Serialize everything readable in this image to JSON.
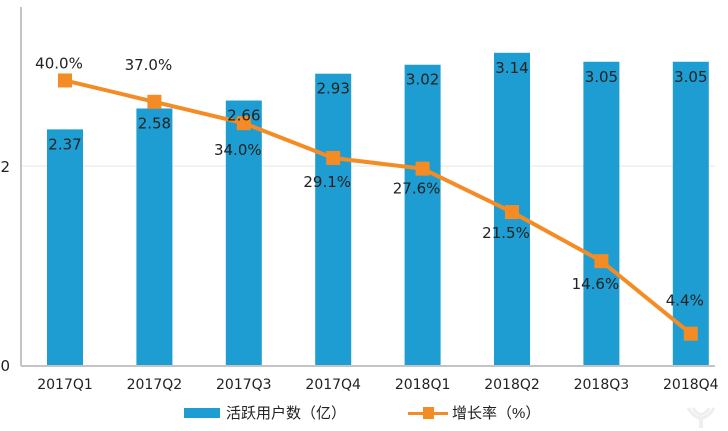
{
  "chart_data": {
    "type": "bar",
    "categories": [
      "2017Q1",
      "2017Q2",
      "2017Q3",
      "2017Q4",
      "2018Q1",
      "2018Q2",
      "2018Q3",
      "2018Q4"
    ],
    "series": [
      {
        "name": "活跃用户数（亿）",
        "type": "bar",
        "color": "#1e9dd2",
        "values": [
          2.37,
          2.58,
          2.66,
          2.93,
          3.02,
          3.14,
          3.05,
          3.05
        ],
        "labels": [
          "2.37",
          "2.58",
          "2.66",
          "2.93",
          "3.02",
          "3.14",
          "3.05",
          "3.05"
        ]
      },
      {
        "name": "增长率（%）",
        "type": "line",
        "color": "#f58b24",
        "values": [
          40.0,
          37.0,
          34.0,
          29.1,
          27.6,
          21.5,
          14.6,
          4.4
        ],
        "labels": [
          "40.0%",
          "37.0%",
          "34.0%",
          "29.1%",
          "27.6%",
          "21.5%",
          "14.6%",
          "4.4%"
        ]
      }
    ],
    "y_ticks": [
      "0",
      "2"
    ],
    "ylim": [
      0,
      3.47
    ],
    "y2lim": [
      0,
      48.5
    ],
    "grid": true,
    "legend_position": "bottom"
  }
}
